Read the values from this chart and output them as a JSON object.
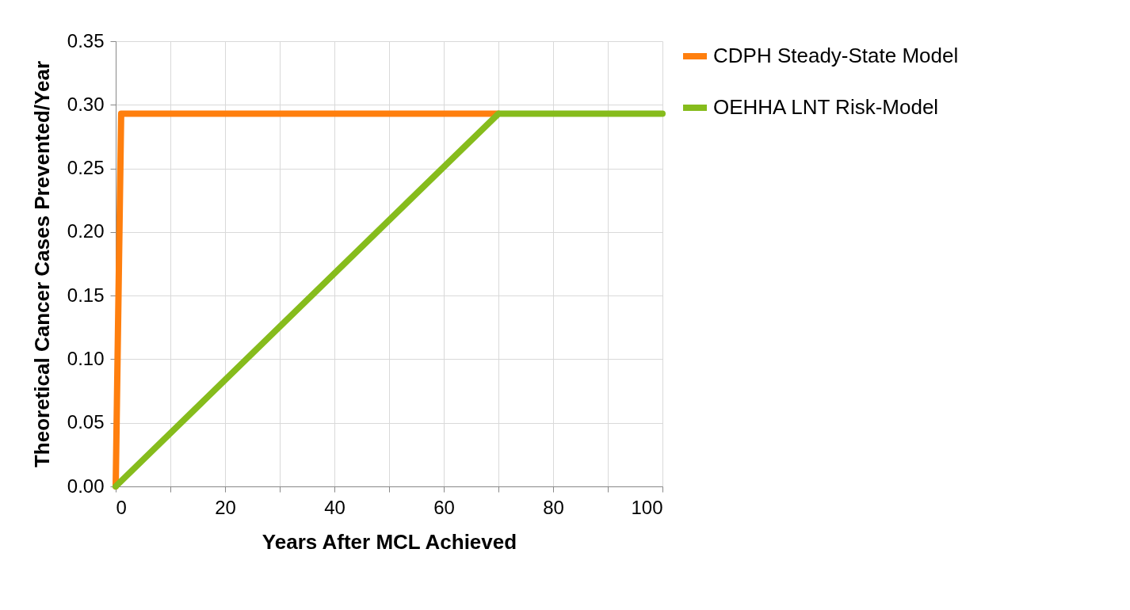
{
  "chart_data": {
    "type": "line",
    "xlabel": "Years After MCL Achieved",
    "ylabel": "Theoretical Cancer Cases Prevented/Year",
    "series": [
      {
        "name": "CDPH Steady-State Model",
        "color": "#ff7f0e",
        "x": [
          0,
          1,
          70
        ],
        "values": [
          0,
          0.293,
          0.293
        ]
      },
      {
        "name": "OEHHA LNT Risk-Model",
        "color": "#86bc1c",
        "x": [
          0,
          70,
          100
        ],
        "values": [
          0,
          0.293,
          0.293
        ]
      }
    ],
    "xlim": [
      0,
      100
    ],
    "xticks": [
      0,
      {
        "value": 10,
        "label": null
      },
      20,
      {
        "value": 30,
        "label": null
      },
      40,
      {
        "value": 50,
        "label": null
      },
      60,
      {
        "value": 70,
        "label": null
      },
      80,
      {
        "value": 90,
        "label": null
      },
      100
    ],
    "ylim": [
      0,
      0.35
    ],
    "yticks": [
      {
        "value": 0,
        "label": "0.00"
      },
      {
        "value": 0.05,
        "label": "0.05"
      },
      {
        "value": 0.1,
        "label": "0.10"
      },
      {
        "value": 0.15,
        "label": "0.15"
      },
      {
        "value": 0.2,
        "label": "0.20"
      },
      {
        "value": 0.25,
        "label": "0.25"
      },
      {
        "value": 0.3,
        "label": "0.30"
      },
      {
        "value": 0.35,
        "label": "0.35"
      }
    ],
    "grid": true,
    "legend": "right",
    "marker": "none",
    "line_style": "solid"
  }
}
